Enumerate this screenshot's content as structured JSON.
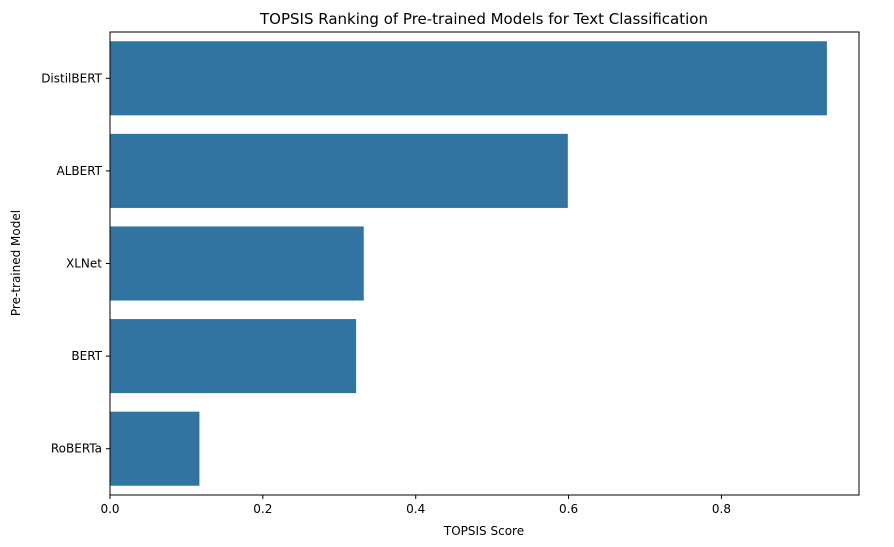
{
  "chart_data": {
    "type": "bar",
    "orientation": "horizontal",
    "title": "TOPSIS Ranking of Pre-trained Models for Text Classification",
    "xlabel": "TOPSIS Score",
    "ylabel": "Pre-trained Model",
    "categories": [
      "DistilBERT",
      "ALBERT",
      "XLNet",
      "BERT",
      "RoBERTa"
    ],
    "values": [
      0.938,
      0.599,
      0.332,
      0.322,
      0.117
    ],
    "xlim": [
      0,
      0.98
    ],
    "xticks": [
      0.0,
      0.2,
      0.4,
      0.6,
      0.8
    ],
    "xtick_labels": [
      "0.0",
      "0.2",
      "0.4",
      "0.6",
      "0.8"
    ],
    "grid": false,
    "legend": "none",
    "bar_color": "#3274a1"
  }
}
